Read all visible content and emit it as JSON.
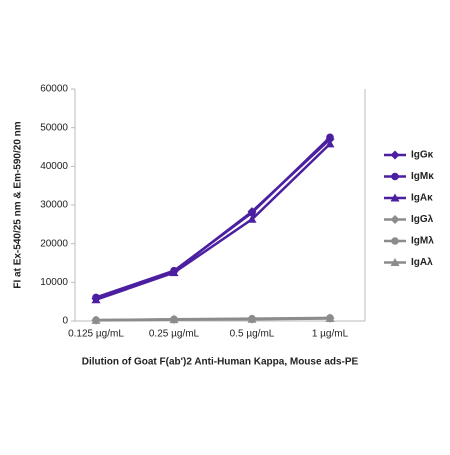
{
  "chart_data": {
    "type": "line",
    "y_label": "FI at Ex-540/25 nm & Em-590/20 nm",
    "x_label": "Dilution of Goat F(ab')2 Anti-Human Kappa, Mouse ads-PE",
    "categories": [
      "0.125 µg/mL",
      "0.25 µg/mL",
      "0.5 µg/mL",
      "1 µg/mL"
    ],
    "series": [
      {
        "name": "IgGκ",
        "color": "#4b1fa0",
        "marker": "diamond",
        "values": [
          5800,
          12800,
          28300,
          47000
        ]
      },
      {
        "name": "IgMκ",
        "color": "#4b1fa0",
        "marker": "circle",
        "values": [
          6100,
          13000,
          28000,
          47500
        ]
      },
      {
        "name": "IgAκ",
        "color": "#4b1fa0",
        "marker": "triangle",
        "values": [
          5500,
          12500,
          26300,
          45800
        ]
      },
      {
        "name": "IgGλ",
        "color": "#8c8c8c",
        "marker": "diamond",
        "values": [
          200,
          400,
          500,
          700
        ]
      },
      {
        "name": "IgMλ",
        "color": "#8c8c8c",
        "marker": "circle",
        "values": [
          250,
          450,
          600,
          800
        ]
      },
      {
        "name": "IgAλ",
        "color": "#8c8c8c",
        "marker": "triangle",
        "values": [
          150,
          350,
          450,
          650
        ]
      }
    ],
    "ylim": [
      0,
      60000
    ],
    "yticks": [
      0,
      10000,
      20000,
      30000,
      40000,
      50000,
      60000
    ]
  }
}
